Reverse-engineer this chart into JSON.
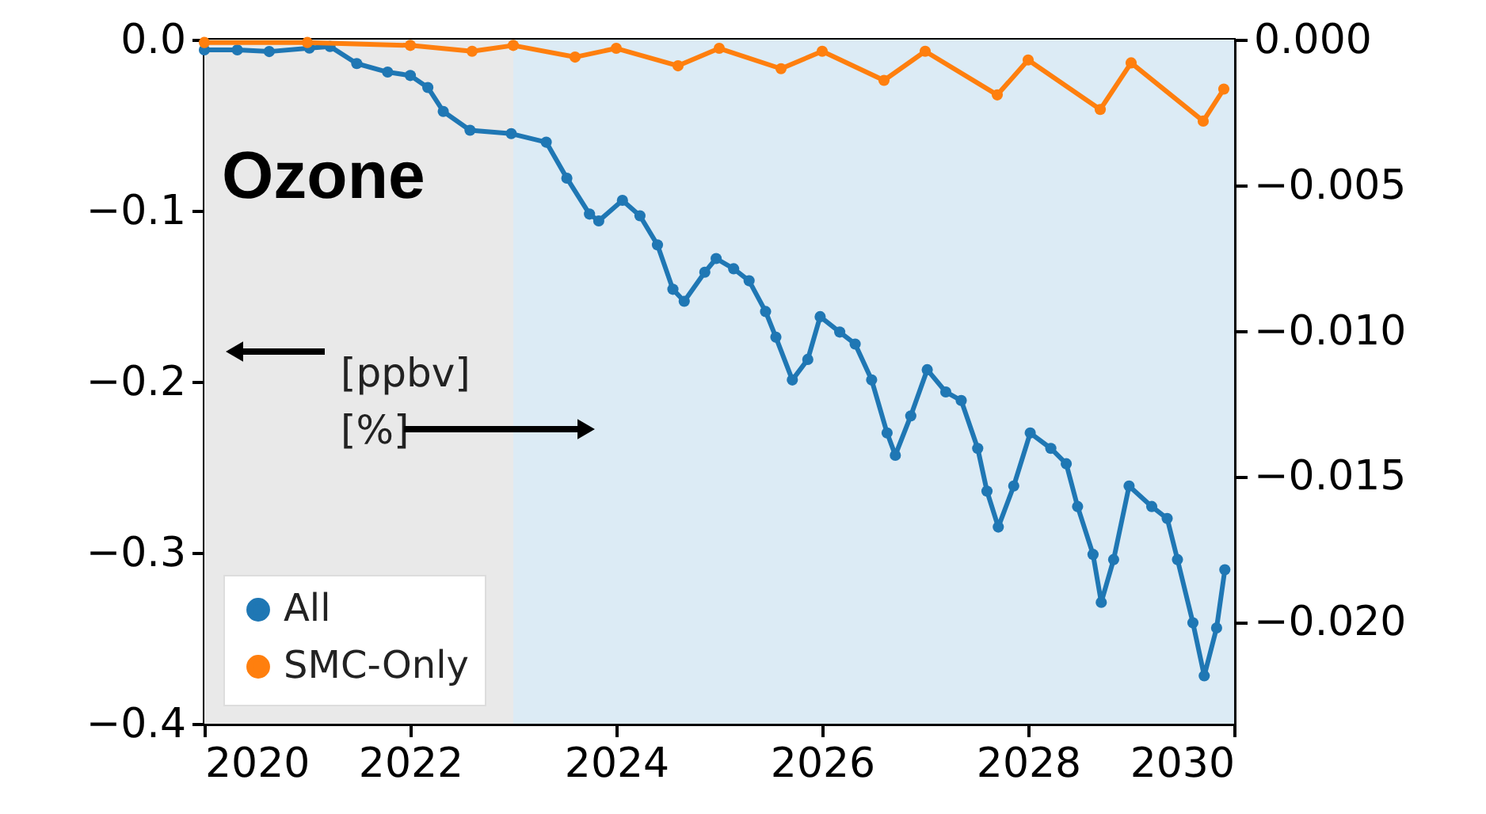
{
  "chart_data": {
    "type": "line",
    "xlim": [
      2020,
      2030
    ],
    "xticks": [
      2020,
      2022,
      2024,
      2026,
      2028,
      2030
    ],
    "ylim": [
      -0.4,
      0.0
    ],
    "yticks": [
      {
        "value": 0.0,
        "label": "0.0"
      },
      {
        "value": -0.1,
        "label": "−0.1"
      },
      {
        "value": -0.2,
        "label": "−0.2"
      },
      {
        "value": -0.3,
        "label": "−0.3"
      },
      {
        "value": -0.4,
        "label": "−0.4"
      }
    ],
    "y2lim": [
      -0.0235,
      0.0
    ],
    "y2ticks": [
      {
        "value": 0.0,
        "label": "0.000"
      },
      {
        "value": -0.005,
        "label": "−0.005"
      },
      {
        "value": -0.01,
        "label": "−0.010"
      },
      {
        "value": -0.015,
        "label": "−0.015"
      },
      {
        "value": -0.02,
        "label": "−0.020"
      }
    ],
    "series": [
      {
        "name": "All",
        "color": "#1f77b4",
        "x": [
          2020.0,
          2020.32,
          2020.63,
          2021.02,
          2021.22,
          2021.48,
          2021.78,
          2022.0,
          2022.17,
          2022.32,
          2022.58,
          2022.98,
          2023.32,
          2023.52,
          2023.74,
          2023.83,
          2024.06,
          2024.23,
          2024.4,
          2024.55,
          2024.66,
          2024.86,
          2024.97,
          2025.14,
          2025.29,
          2025.45,
          2025.55,
          2025.71,
          2025.86,
          2025.98,
          2026.17,
          2026.32,
          2026.48,
          2026.63,
          2026.71,
          2026.86,
          2027.02,
          2027.2,
          2027.35,
          2027.51,
          2027.6,
          2027.71,
          2027.86,
          2028.02,
          2028.22,
          2028.37,
          2028.48,
          2028.63,
          2028.71,
          2028.83,
          2028.98,
          2029.2,
          2029.35,
          2029.45,
          2029.6,
          2029.71,
          2029.83,
          2029.91
        ],
        "values": [
          -0.006,
          -0.006,
          -0.007,
          -0.005,
          -0.004,
          -0.014,
          -0.019,
          -0.021,
          -0.028,
          -0.042,
          -0.053,
          -0.055,
          -0.06,
          -0.081,
          -0.102,
          -0.106,
          -0.094,
          -0.103,
          -0.12,
          -0.146,
          -0.153,
          -0.136,
          -0.128,
          -0.134,
          -0.141,
          -0.159,
          -0.174,
          -0.199,
          -0.187,
          -0.162,
          -0.171,
          -0.178,
          -0.199,
          -0.23,
          -0.243,
          -0.22,
          -0.193,
          -0.206,
          -0.211,
          -0.239,
          -0.264,
          -0.285,
          -0.261,
          -0.23,
          -0.239,
          -0.248,
          -0.273,
          -0.301,
          -0.329,
          -0.304,
          -0.261,
          -0.273,
          -0.28,
          -0.304,
          -0.341,
          -0.372,
          -0.344,
          -0.31
        ]
      },
      {
        "name": "SMC-Only",
        "color": "#ff7f0e",
        "axis": "y2",
        "x": [
          2020.0,
          2021.0,
          2022.0,
          2022.6,
          2023.0,
          2023.6,
          2024.0,
          2024.6,
          2025.0,
          2025.6,
          2026.0,
          2026.6,
          2027.0,
          2027.7,
          2028.0,
          2028.7,
          2029.0,
          2029.7,
          2029.9
        ],
        "values": [
          -0.0001,
          -0.0001,
          -0.0002,
          -0.0004,
          -0.0002,
          -0.0006,
          -0.0003,
          -0.0009,
          -0.0003,
          -0.001,
          -0.0004,
          -0.0014,
          -0.0004,
          -0.0019,
          -0.0007,
          -0.0024,
          -0.0008,
          -0.0028,
          -0.0017
        ]
      }
    ],
    "bands": [
      {
        "axis": "x",
        "from": 2020,
        "to": 2023,
        "color": "#e9e9e9"
      },
      {
        "axis": "x",
        "from": 2023,
        "to": 2030,
        "color": "#dcebf5"
      }
    ],
    "annotations": [
      "Ozone",
      "[ppbv]",
      "[%]"
    ],
    "marker": "circle",
    "line_style": "solid",
    "grid": false,
    "legend": "bottom left"
  }
}
